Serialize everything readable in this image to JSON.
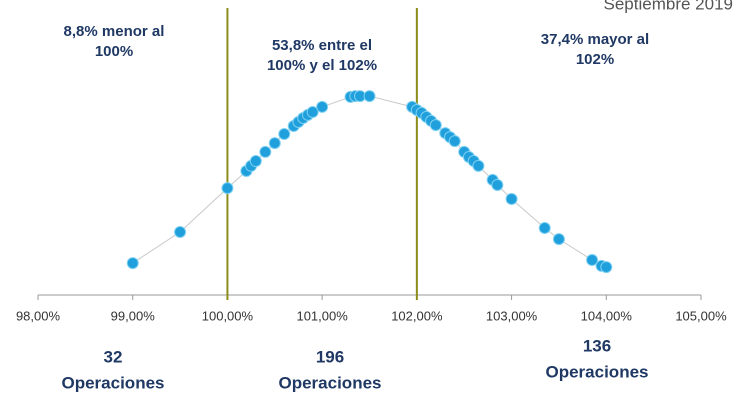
{
  "chart_data": {
    "type": "scatter",
    "title": "Septiembre 2019",
    "x": [
      99.0,
      99.5,
      100.0,
      100.2,
      100.25,
      100.3,
      100.4,
      100.5,
      100.6,
      100.7,
      100.75,
      100.8,
      100.85,
      100.9,
      101.0,
      101.3,
      101.35,
      101.4,
      101.5,
      101.95,
      102.0,
      102.05,
      102.1,
      102.15,
      102.2,
      102.3,
      102.35,
      102.4,
      102.5,
      102.55,
      102.6,
      102.65,
      102.8,
      102.85,
      103.0,
      103.35,
      103.5,
      103.85,
      103.95,
      104.0
    ],
    "values": [
      11.2,
      22.1,
      37.5,
      43.5,
      45.3,
      47.0,
      50.2,
      53.3,
      56.5,
      59.3,
      60.7,
      62.1,
      63.2,
      64.2,
      66.0,
      69.5,
      69.8,
      69.8,
      69.8,
      66.0,
      64.9,
      63.9,
      62.5,
      61.1,
      59.6,
      56.8,
      55.4,
      54.0,
      50.2,
      48.4,
      47.0,
      45.3,
      40.4,
      38.6,
      33.7,
      23.5,
      19.6,
      12.3,
      10.2,
      9.8
    ],
    "color": "#1fa0dc",
    "line_color": "#c8c8c8",
    "xlim": [
      98,
      105
    ],
    "xticks": [
      {
        "value": 98,
        "label": "98,00%"
      },
      {
        "value": 99,
        "label": "99,00%"
      },
      {
        "value": 100,
        "label": "100,00%"
      },
      {
        "value": 101,
        "label": "101,00%"
      },
      {
        "value": 102,
        "label": "102,00%"
      },
      {
        "value": 103,
        "label": "103,00%"
      },
      {
        "value": 104,
        "label": "104,00%"
      },
      {
        "value": 105,
        "label": "105,00%"
      }
    ],
    "ylim": [
      0,
      100
    ],
    "vlines": [
      100,
      102
    ],
    "vline_color": "#8c8c1a",
    "annotations": [
      {
        "lines": [
          "8,8% menor al",
          "100%"
        ]
      },
      {
        "lines": [
          "53,8% entre el",
          "100% y el 102%"
        ]
      },
      {
        "lines": [
          "37,4% mayor al",
          "102%"
        ]
      }
    ],
    "groups": [
      {
        "count": 32,
        "label": "Operaciones"
      },
      {
        "count": 196,
        "label": "Operaciones"
      },
      {
        "count": 136,
        "label": "Operaciones"
      }
    ]
  }
}
